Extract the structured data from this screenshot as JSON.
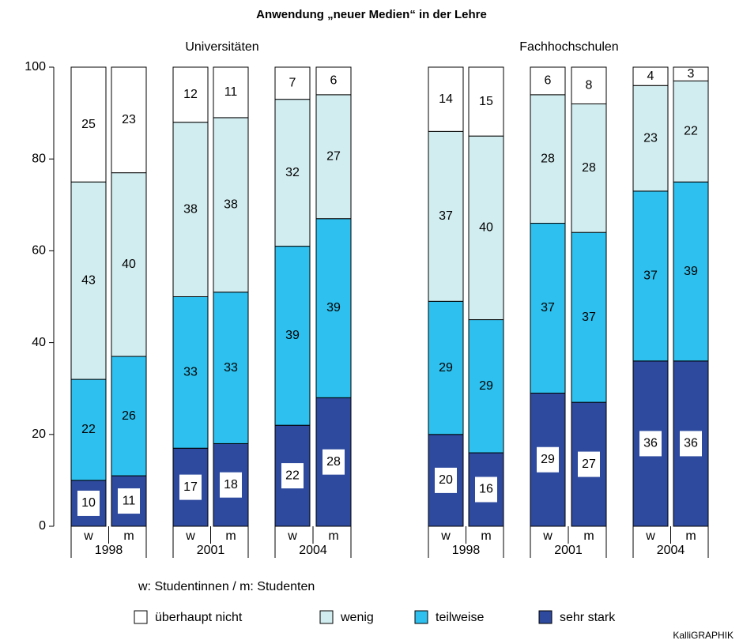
{
  "chart_data": {
    "type": "stacked_bar",
    "title": "Anwendung „neuer Medien“ in der Lehre",
    "groups": [
      "Universitäten",
      "Fachhochschulen"
    ],
    "years": [
      "1998",
      "2001",
      "2004",
      "1998",
      "2001",
      "2004"
    ],
    "categories": [
      "w",
      "m",
      "w",
      "m",
      "w",
      "m",
      "w",
      "m",
      "w",
      "m",
      "w",
      "m"
    ],
    "series": [
      {
        "name": "überhaupt nicht",
        "color": "#ffffff",
        "values": [
          25,
          23,
          12,
          11,
          7,
          6,
          14,
          15,
          6,
          8,
          4,
          3
        ]
      },
      {
        "name": "wenig",
        "color": "#d2edf0",
        "values": [
          43,
          40,
          38,
          38,
          32,
          27,
          37,
          40,
          28,
          28,
          23,
          22
        ]
      },
      {
        "name": "teilweise",
        "color": "#2ec0ee",
        "values": [
          22,
          26,
          33,
          33,
          39,
          39,
          29,
          29,
          37,
          37,
          37,
          39
        ]
      },
      {
        "name": "sehr stark",
        "color": "#2e4a9e",
        "values": [
          10,
          11,
          17,
          18,
          22,
          28,
          20,
          16,
          29,
          27,
          36,
          36
        ]
      }
    ],
    "ylim": [
      0,
      100
    ],
    "yticks": [
      0,
      20,
      40,
      60,
      80,
      100
    ],
    "note": "w: Studentinnen / m: Studenten",
    "credit": "KalliGRAPHIK"
  }
}
